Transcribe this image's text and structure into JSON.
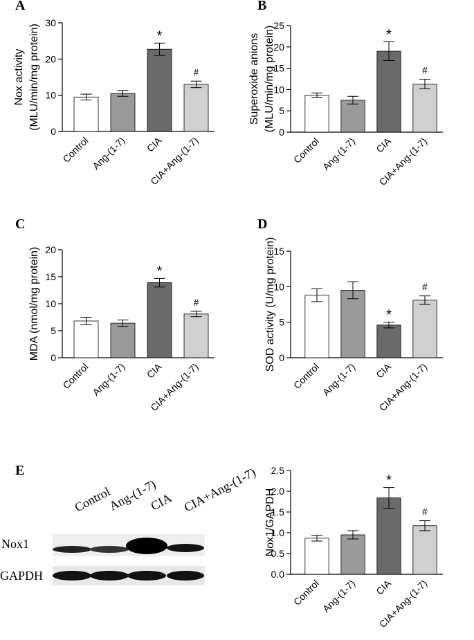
{
  "chart_data": [
    {
      "type": "bar",
      "label": "A",
      "ylabel": [
        "Nox activity",
        "(MLU/min/mg protein)"
      ],
      "categories": [
        "Control",
        "Ang-(1-7)",
        "CIA",
        "CIA+Ang-(1-7)"
      ],
      "values": [
        9.5,
        10.5,
        22.7,
        13
      ],
      "errors": [
        0.8,
        0.8,
        1.7,
        0.9
      ],
      "annotations": [
        null,
        null,
        "*",
        "#"
      ],
      "colors": [
        "#ffffff",
        "#9a9a9a",
        "#6a6a6a",
        "#d0d0d0"
      ],
      "ylim": [
        0,
        30
      ],
      "yticks": [
        0,
        10,
        20,
        30
      ]
    },
    {
      "type": "bar",
      "label": "B",
      "ylabel": [
        "Superoxide anions",
        "(MLU/min/mg protein)"
      ],
      "categories": [
        "Control",
        "Ang-(1-7)",
        "CIA",
        "CIA+Ang-(1-7)"
      ],
      "values": [
        8.7,
        7.5,
        19,
        11.3
      ],
      "errors": [
        0.5,
        0.9,
        2.2,
        1.1
      ],
      "annotations": [
        null,
        null,
        "*",
        "#"
      ],
      "colors": [
        "#ffffff",
        "#9a9a9a",
        "#6a6a6a",
        "#d0d0d0"
      ],
      "ylim": [
        0,
        25
      ],
      "yticks": [
        0,
        5,
        10,
        15,
        20,
        25
      ]
    },
    {
      "type": "bar",
      "label": "C",
      "ylabel": [
        "MDA (nmol/mg protein)"
      ],
      "categories": [
        "Control",
        "Ang-(1-7)",
        "CIA",
        "CIA+Ang-(1-7)"
      ],
      "values": [
        6.8,
        6.4,
        13.9,
        8.1
      ],
      "errors": [
        0.7,
        0.6,
        0.8,
        0.5
      ],
      "annotations": [
        null,
        null,
        "*",
        "#"
      ],
      "colors": [
        "#ffffff",
        "#9a9a9a",
        "#6a6a6a",
        "#d0d0d0"
      ],
      "ylim": [
        0,
        20
      ],
      "yticks": [
        0,
        5,
        10,
        15,
        20
      ]
    },
    {
      "type": "bar",
      "label": "D",
      "ylabel": [
        "SOD activity (U/mg protein)"
      ],
      "categories": [
        "Control",
        "Ang-(1-7)",
        "CIA",
        "CIA+Ang-(1-7)"
      ],
      "values": [
        8.8,
        9.5,
        4.6,
        8.1
      ],
      "errors": [
        0.9,
        1.2,
        0.4,
        0.6
      ],
      "annotations": [
        null,
        null,
        "*",
        "#"
      ],
      "colors": [
        "#ffffff",
        "#9a9a9a",
        "#6a6a6a",
        "#d0d0d0"
      ],
      "ylim": [
        0,
        15
      ],
      "yticks": [
        0,
        5,
        10,
        15
      ]
    },
    {
      "type": "bar",
      "ylabel": [
        "Nox1/GAPDH"
      ],
      "categories": [
        "Control",
        "Ang-(1-7)",
        "CIA",
        "CIA+Ang-(1-7)"
      ],
      "values": [
        0.87,
        0.95,
        1.84,
        1.17
      ],
      "errors": [
        0.07,
        0.1,
        0.25,
        0.12
      ],
      "annotations": [
        null,
        null,
        "*",
        "#"
      ],
      "colors": [
        "#ffffff",
        "#9a9a9a",
        "#6a6a6a",
        "#d0d0d0"
      ],
      "ylim": [
        0,
        2.5
      ],
      "yticks": [
        {
          "value": 0,
          "label": "0.0"
        },
        0.5,
        {
          "value": 1,
          "label": "1.0"
        },
        1.5,
        {
          "value": 2,
          "label": "2.0"
        },
        2.5
      ]
    }
  ],
  "blot": {
    "label": "E",
    "lanes": [
      "Control",
      "Ang-(1-7)",
      "CIA",
      "CIA+Ang-(1-7)"
    ],
    "rows": [
      "Nox1",
      "GAPDH"
    ]
  }
}
